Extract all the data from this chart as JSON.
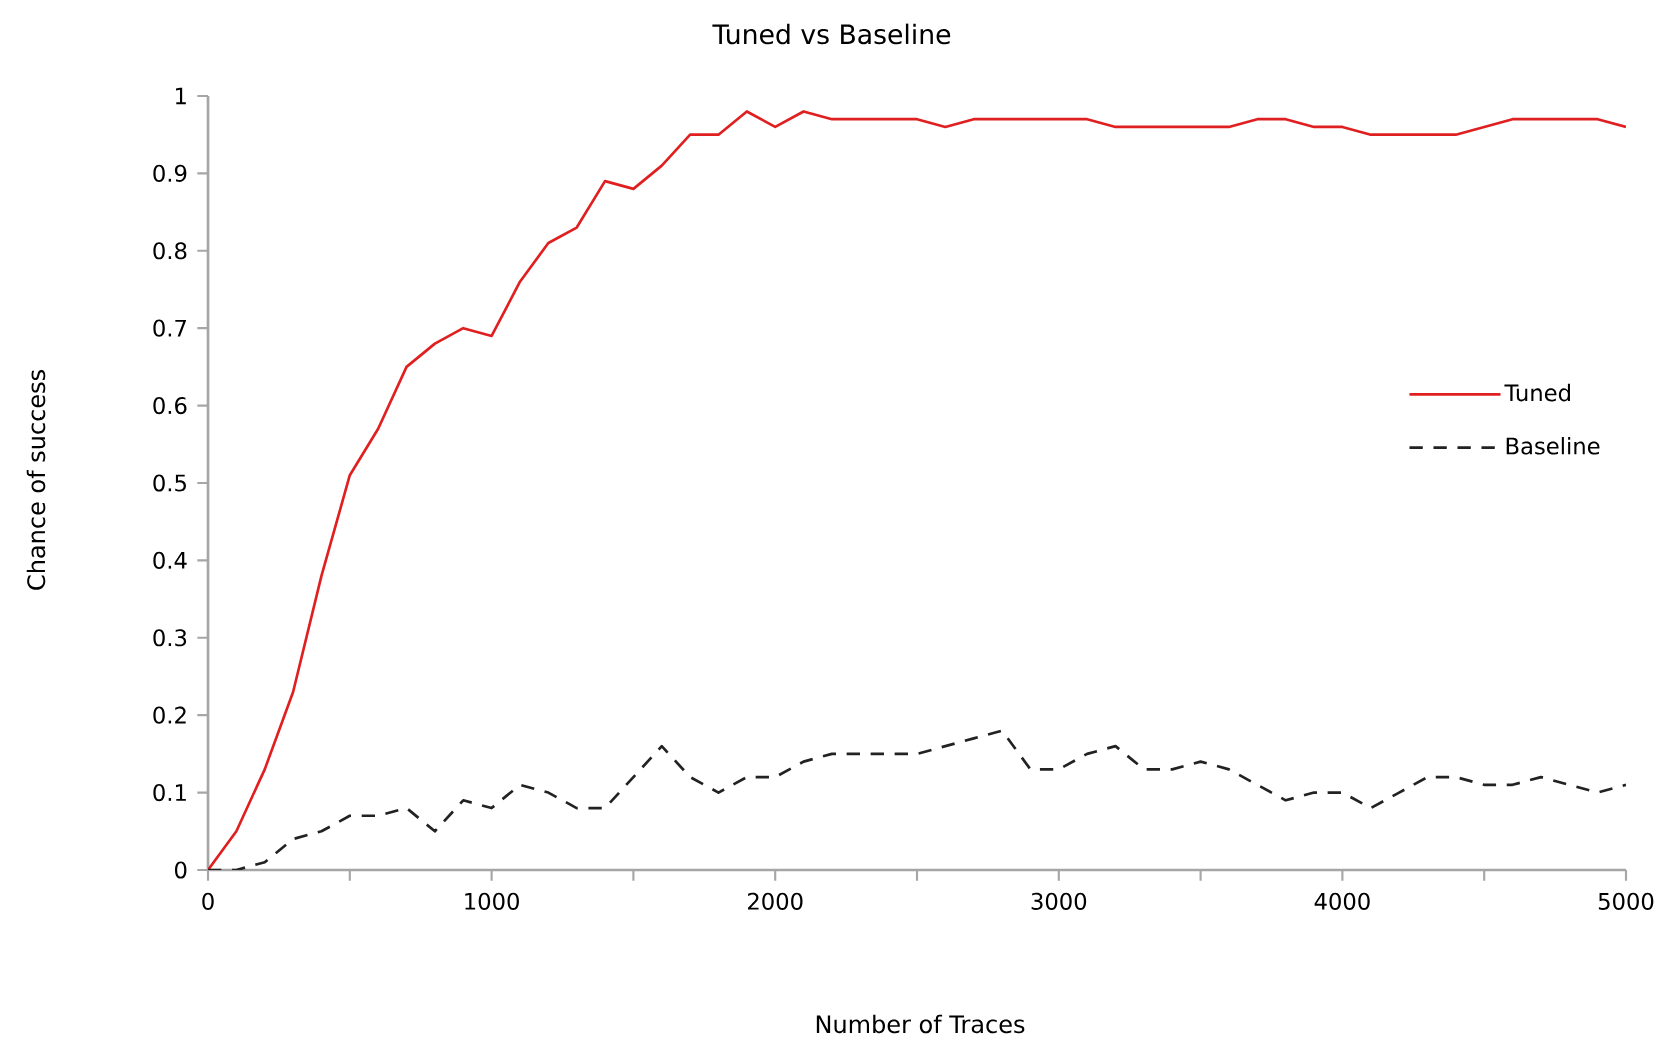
{
  "chart_data": {
    "type": "line",
    "title": "Tuned vs Baseline",
    "xlabel": "Number of Traces",
    "ylabel": "Chance of success",
    "x": [
      0,
      100,
      200,
      300,
      400,
      500,
      600,
      700,
      800,
      900,
      1000,
      1100,
      1200,
      1300,
      1400,
      1500,
      1600,
      1700,
      1800,
      1900,
      2000,
      2100,
      2200,
      2300,
      2400,
      2500,
      2600,
      2700,
      2800,
      2900,
      3000,
      3100,
      3200,
      3300,
      3400,
      3500,
      3600,
      3700,
      3800,
      3900,
      4000,
      4100,
      4200,
      4300,
      4400,
      4500,
      4600,
      4700,
      4800,
      4900,
      5000
    ],
    "series": [
      {
        "name": "Tuned",
        "color": "#e02020",
        "line_style": "solid",
        "values": [
          0,
          0.05,
          0.13,
          0.23,
          0.38,
          0.51,
          0.57,
          0.65,
          0.68,
          0.7,
          0.69,
          0.76,
          0.81,
          0.83,
          0.89,
          0.88,
          0.91,
          0.95,
          0.95,
          0.98,
          0.96,
          0.98,
          0.97,
          0.97,
          0.97,
          0.97,
          0.96,
          0.97,
          0.97,
          0.97,
          0.97,
          0.97,
          0.96,
          0.96,
          0.96,
          0.96,
          0.96,
          0.97,
          0.97,
          0.96,
          0.96,
          0.95,
          0.95,
          0.95,
          0.95,
          0.96,
          0.97,
          0.97,
          0.97,
          0.97,
          0.96
        ]
      },
      {
        "name": "Baseline",
        "color": "#222222",
        "line_style": "dashed",
        "values": [
          0,
          0,
          0.01,
          0.04,
          0.05,
          0.07,
          0.07,
          0.08,
          0.05,
          0.09,
          0.08,
          0.11,
          0.1,
          0.08,
          0.08,
          0.12,
          0.16,
          0.12,
          0.1,
          0.12,
          0.12,
          0.14,
          0.15,
          0.15,
          0.15,
          0.15,
          0.16,
          0.17,
          0.18,
          0.13,
          0.13,
          0.15,
          0.16,
          0.13,
          0.13,
          0.14,
          0.13,
          0.11,
          0.09,
          0.1,
          0.1,
          0.08,
          0.1,
          0.12,
          0.12,
          0.11,
          0.11,
          0.12,
          0.11,
          0.1,
          0.11
        ]
      }
    ],
    "xlim": [
      0,
      5000
    ],
    "xticks": [
      0,
      {
        "value": 500,
        "label": null
      },
      1000,
      {
        "value": 1500,
        "label": null
      },
      2000,
      {
        "value": 2500,
        "label": null
      },
      3000,
      {
        "value": 3500,
        "label": null
      },
      4000,
      {
        "value": 4500,
        "label": null
      },
      5000
    ],
    "ylim": [
      0,
      1
    ],
    "yticks": [
      0,
      0.1,
      0.2,
      0.3,
      0.4,
      0.5,
      0.6,
      0.7,
      0.8,
      0.9,
      1
    ],
    "grid": false,
    "legend": "right",
    "marker": "none"
  }
}
